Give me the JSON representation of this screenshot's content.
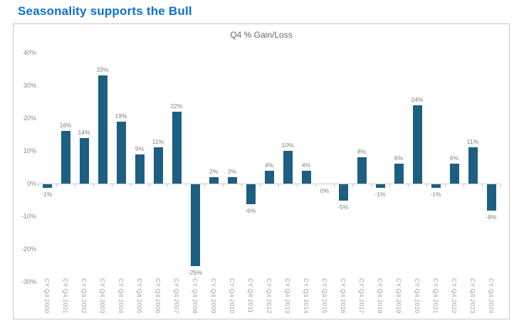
{
  "page": {
    "title": "Seasonality supports the Bull"
  },
  "chart": {
    "title": "Q4 % Gain/Loss"
  },
  "chart_data": {
    "type": "bar",
    "title": "Q4 % Gain/Loss",
    "categories": [
      "CY Q4 2000",
      "CY Q4 2001",
      "CY Q4 2002",
      "CY Q4 2003",
      "CY Q4 2004",
      "CY Q4 2005",
      "CY Q4 2006",
      "CY Q4 2007",
      "CY Q4 2008",
      "CY Q4 2009",
      "CY Q4 2010",
      "CY Q4 2011",
      "CY Q4 2012",
      "CY Q4 2013",
      "CY Q4 2014",
      "CY Q4 2015",
      "CY Q4 2016",
      "CY Q4 2017",
      "CY Q4 2018",
      "CY Q4 2019",
      "CY Q4 2020",
      "CY Q4 2021",
      "CY Q4 2022",
      "CY Q4 2023",
      "CY Q4 2024"
    ],
    "values": [
      -1,
      16,
      14,
      33,
      19,
      9,
      11,
      22,
      -25,
      2,
      2,
      -6,
      4,
      10,
      4,
      0,
      -5,
      8,
      -1,
      6,
      24,
      -1,
      6,
      11,
      -8
    ],
    "value_labels": [
      "-1%",
      "16%",
      "14%",
      "33%",
      "19%",
      "9%",
      "11%",
      "22%",
      "-25%",
      "2%",
      "2%",
      "-6%",
      "4%",
      "10%",
      "4%",
      "0%",
      "-5%",
      "8%",
      "-1%",
      "6%",
      "24%",
      "-1%",
      "6%",
      "11%",
      "-8%"
    ],
    "xlabel": "",
    "ylabel": "",
    "ylim": [
      -30,
      40
    ],
    "yticks": [
      40,
      30,
      20,
      10,
      0,
      -10,
      -20,
      -30
    ],
    "ytick_labels": [
      "40%",
      "30%",
      "20%",
      "10%",
      "0%",
      "-10%",
      "-20%",
      "-30%"
    ],
    "grid": false,
    "legend_position": "none",
    "bar_color": "#1c5f80",
    "axis_color": "#c9c9c9",
    "label_color": "#7f7f7f"
  }
}
